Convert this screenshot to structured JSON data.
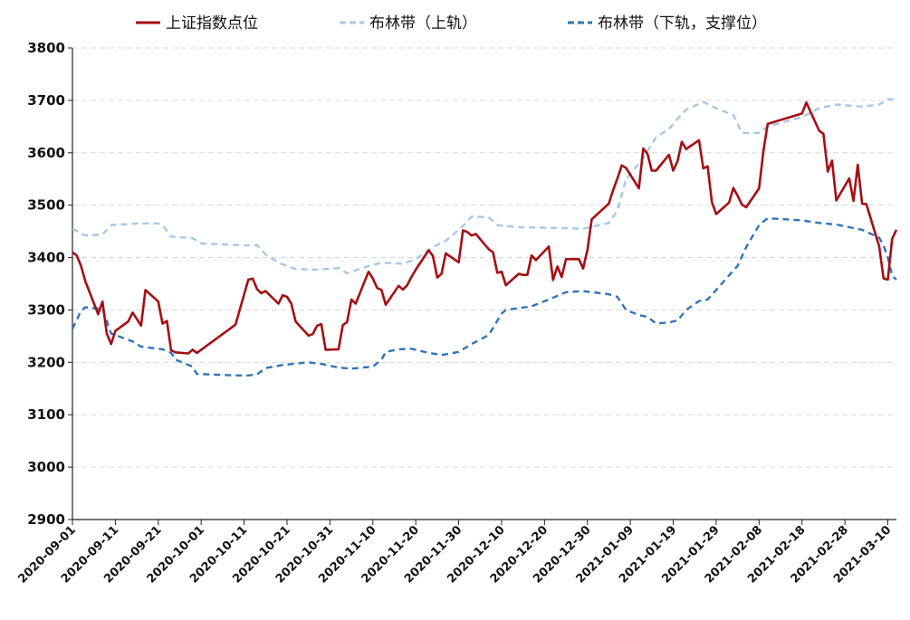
{
  "chart_data": {
    "type": "line",
    "title": "",
    "xlabel": "",
    "ylabel": "",
    "ylim": [
      2900,
      3800
    ],
    "yticks": [
      2900,
      3000,
      3100,
      3200,
      3300,
      3400,
      3500,
      3600,
      3700,
      3800
    ],
    "xlim": [
      "2020-09-01",
      "2021-03-12"
    ],
    "xticks": [
      "2020-09-01",
      "2020-09-11",
      "2020-09-21",
      "2020-10-01",
      "2020-10-11",
      "2020-10-21",
      "2020-10-31",
      "2020-11-10",
      "2020-11-20",
      "2020-11-30",
      "2020-12-10",
      "2020-12-20",
      "2020-12-30",
      "2021-01-09",
      "2021-01-19",
      "2021-01-29",
      "2021-02-08",
      "2021-02-18",
      "2021-02-28",
      "2021-03-10"
    ],
    "grid": "horizontal-dashed",
    "legend_position": "top",
    "series": [
      {
        "name": "上证指数点位",
        "color": "#a50f15",
        "style": "solid",
        "points": [
          [
            "2020-09-01",
            3410
          ],
          [
            "2020-09-02",
            3404
          ],
          [
            "2020-09-03",
            3384
          ],
          [
            "2020-09-04",
            3355
          ],
          [
            "2020-09-07",
            3292
          ],
          [
            "2020-09-08",
            3316
          ],
          [
            "2020-09-09",
            3255
          ],
          [
            "2020-09-10",
            3235
          ],
          [
            "2020-09-11",
            3260
          ],
          [
            "2020-09-14",
            3278
          ],
          [
            "2020-09-15",
            3295
          ],
          [
            "2020-09-16",
            3283
          ],
          [
            "2020-09-17",
            3270
          ],
          [
            "2020-09-18",
            3338
          ],
          [
            "2020-09-21",
            3316
          ],
          [
            "2020-09-22",
            3274
          ],
          [
            "2020-09-23",
            3279
          ],
          [
            "2020-09-24",
            3223
          ],
          [
            "2020-09-25",
            3219
          ],
          [
            "2020-09-28",
            3217
          ],
          [
            "2020-09-29",
            3224
          ],
          [
            "2020-09-30",
            3218
          ],
          [
            "2020-10-09",
            3272
          ],
          [
            "2020-10-12",
            3358
          ],
          [
            "2020-10-13",
            3360
          ],
          [
            "2020-10-14",
            3340
          ],
          [
            "2020-10-15",
            3332
          ],
          [
            "2020-10-16",
            3336
          ],
          [
            "2020-10-19",
            3312
          ],
          [
            "2020-10-20",
            3328
          ],
          [
            "2020-10-21",
            3325
          ],
          [
            "2020-10-22",
            3312
          ],
          [
            "2020-10-23",
            3278
          ],
          [
            "2020-10-26",
            3251
          ],
          [
            "2020-10-27",
            3254
          ],
          [
            "2020-10-28",
            3270
          ],
          [
            "2020-10-29",
            3273
          ],
          [
            "2020-10-30",
            3224
          ],
          [
            "2020-11-02",
            3225
          ],
          [
            "2020-11-03",
            3271
          ],
          [
            "2020-11-04",
            3277
          ],
          [
            "2020-11-05",
            3320
          ],
          [
            "2020-11-06",
            3312
          ],
          [
            "2020-11-09",
            3373
          ],
          [
            "2020-11-10",
            3360
          ],
          [
            "2020-11-11",
            3342
          ],
          [
            "2020-11-12",
            3338
          ],
          [
            "2020-11-13",
            3310
          ],
          [
            "2020-11-16",
            3346
          ],
          [
            "2020-11-17",
            3339
          ],
          [
            "2020-11-18",
            3347
          ],
          [
            "2020-11-19",
            3363
          ],
          [
            "2020-11-20",
            3377
          ],
          [
            "2020-11-23",
            3414
          ],
          [
            "2020-11-24",
            3403
          ],
          [
            "2020-11-25",
            3362
          ],
          [
            "2020-11-26",
            3369
          ],
          [
            "2020-11-27",
            3408
          ],
          [
            "2020-11-30",
            3391
          ],
          [
            "2020-12-01",
            3452
          ],
          [
            "2020-12-02",
            3449
          ],
          [
            "2020-12-03",
            3442
          ],
          [
            "2020-12-04",
            3445
          ],
          [
            "2020-12-07",
            3416
          ],
          [
            "2020-12-08",
            3410
          ],
          [
            "2020-12-09",
            3371
          ],
          [
            "2020-12-10",
            3373
          ],
          [
            "2020-12-11",
            3347
          ],
          [
            "2020-12-14",
            3369
          ],
          [
            "2020-12-15",
            3367
          ],
          [
            "2020-12-16",
            3367
          ],
          [
            "2020-12-17",
            3404
          ],
          [
            "2020-12-18",
            3395
          ],
          [
            "2020-12-21",
            3421
          ],
          [
            "2020-12-22",
            3357
          ],
          [
            "2020-12-23",
            3383
          ],
          [
            "2020-12-24",
            3363
          ],
          [
            "2020-12-25",
            3397
          ],
          [
            "2020-12-28",
            3397
          ],
          [
            "2020-12-29",
            3379
          ],
          [
            "2020-12-30",
            3415
          ],
          [
            "2020-12-31",
            3473
          ],
          [
            "2021-01-04",
            3503
          ],
          [
            "2021-01-05",
            3529
          ],
          [
            "2021-01-06",
            3551
          ],
          [
            "2021-01-07",
            3576
          ],
          [
            "2021-01-08",
            3571
          ],
          [
            "2021-01-11",
            3532
          ],
          [
            "2021-01-12",
            3608
          ],
          [
            "2021-01-13",
            3598
          ],
          [
            "2021-01-14",
            3566
          ],
          [
            "2021-01-15",
            3566
          ],
          [
            "2021-01-18",
            3596
          ],
          [
            "2021-01-19",
            3566
          ],
          [
            "2021-01-20",
            3584
          ],
          [
            "2021-01-21",
            3621
          ],
          [
            "2021-01-22",
            3607
          ],
          [
            "2021-01-25",
            3624
          ],
          [
            "2021-01-26",
            3570
          ],
          [
            "2021-01-27",
            3574
          ],
          [
            "2021-01-28",
            3506
          ],
          [
            "2021-01-29",
            3483
          ],
          [
            "2021-02-01",
            3505
          ],
          [
            "2021-02-02",
            3533
          ],
          [
            "2021-02-03",
            3518
          ],
          [
            "2021-02-04",
            3501
          ],
          [
            "2021-02-05",
            3496
          ],
          [
            "2021-02-08",
            3532
          ],
          [
            "2021-02-09",
            3603
          ],
          [
            "2021-02-10",
            3655
          ],
          [
            "2021-02-18",
            3675
          ],
          [
            "2021-02-19",
            3696
          ],
          [
            "2021-02-22",
            3642
          ],
          [
            "2021-02-23",
            3636
          ],
          [
            "2021-02-24",
            3564
          ],
          [
            "2021-02-25",
            3585
          ],
          [
            "2021-02-26",
            3509
          ],
          [
            "2021-03-01",
            3551
          ],
          [
            "2021-03-02",
            3508
          ],
          [
            "2021-03-03",
            3577
          ],
          [
            "2021-03-04",
            3503
          ],
          [
            "2021-03-05",
            3502
          ],
          [
            "2021-03-08",
            3421
          ],
          [
            "2021-03-09",
            3360
          ],
          [
            "2021-03-10",
            3358
          ],
          [
            "2021-03-11",
            3436
          ],
          [
            "2021-03-12",
            3453
          ]
        ]
      },
      {
        "name": "布林带（上轨）",
        "color": "#a6c8e8",
        "style": "dashed",
        "points": [
          [
            "2020-09-01",
            3455
          ],
          [
            "2020-09-04",
            3442
          ],
          [
            "2020-09-08",
            3444
          ],
          [
            "2020-09-10",
            3462
          ],
          [
            "2020-09-16",
            3465
          ],
          [
            "2020-09-21",
            3465
          ],
          [
            "2020-09-22",
            3462
          ],
          [
            "2020-09-24",
            3440
          ],
          [
            "2020-09-29",
            3437
          ],
          [
            "2020-10-01",
            3427
          ],
          [
            "2020-10-09",
            3424
          ],
          [
            "2020-10-11",
            3423
          ],
          [
            "2020-10-14",
            3424
          ],
          [
            "2020-10-16",
            3406
          ],
          [
            "2020-10-19",
            3390
          ],
          [
            "2020-10-23",
            3378
          ],
          [
            "2020-10-28",
            3377
          ],
          [
            "2020-11-02",
            3380
          ],
          [
            "2020-11-04",
            3370
          ],
          [
            "2020-11-09",
            3384
          ],
          [
            "2020-11-12",
            3390
          ],
          [
            "2020-11-17",
            3388
          ],
          [
            "2020-11-20",
            3397
          ],
          [
            "2020-11-24",
            3420
          ],
          [
            "2020-11-27",
            3432
          ],
          [
            "2020-12-01",
            3460
          ],
          [
            "2020-12-03",
            3478
          ],
          [
            "2020-12-07",
            3477
          ],
          [
            "2020-12-09",
            3462
          ],
          [
            "2020-12-14",
            3458
          ],
          [
            "2020-12-21",
            3457
          ],
          [
            "2020-12-25",
            3456
          ],
          [
            "2020-12-29",
            3455
          ],
          [
            "2021-01-04",
            3466
          ],
          [
            "2021-01-06",
            3490
          ],
          [
            "2021-01-08",
            3550
          ],
          [
            "2021-01-12",
            3590
          ],
          [
            "2021-01-15",
            3630
          ],
          [
            "2021-01-18",
            3645
          ],
          [
            "2021-01-20",
            3665
          ],
          [
            "2021-01-22",
            3682
          ],
          [
            "2021-01-26",
            3697
          ],
          [
            "2021-01-29",
            3685
          ],
          [
            "2021-02-02",
            3672
          ],
          [
            "2021-02-04",
            3638
          ],
          [
            "2021-02-08",
            3638
          ],
          [
            "2021-02-10",
            3650
          ],
          [
            "2021-02-18",
            3668
          ],
          [
            "2021-02-22",
            3685
          ],
          [
            "2021-02-26",
            3692
          ],
          [
            "2021-03-04",
            3688
          ],
          [
            "2021-03-08",
            3692
          ],
          [
            "2021-03-10",
            3702
          ],
          [
            "2021-03-12",
            3702
          ]
        ]
      },
      {
        "name": "布林带（下轨，支撑位）",
        "color": "#2e75b6",
        "style": "dashed",
        "points": [
          [
            "2020-09-01",
            3264
          ],
          [
            "2020-09-03",
            3298
          ],
          [
            "2020-09-04",
            3305
          ],
          [
            "2020-09-08",
            3302
          ],
          [
            "2020-09-10",
            3255
          ],
          [
            "2020-09-15",
            3240
          ],
          [
            "2020-09-17",
            3230
          ],
          [
            "2020-09-22",
            3225
          ],
          [
            "2020-09-24",
            3218
          ],
          [
            "2020-09-25",
            3205
          ],
          [
            "2020-09-29",
            3192
          ],
          [
            "2020-09-30",
            3178
          ],
          [
            "2020-10-09",
            3175
          ],
          [
            "2020-10-12",
            3175
          ],
          [
            "2020-10-14",
            3177
          ],
          [
            "2020-10-16",
            3189
          ],
          [
            "2020-10-20",
            3195
          ],
          [
            "2020-10-26",
            3200
          ],
          [
            "2020-10-29",
            3197
          ],
          [
            "2020-11-02",
            3190
          ],
          [
            "2020-11-05",
            3188
          ],
          [
            "2020-11-10",
            3192
          ],
          [
            "2020-11-12",
            3205
          ],
          [
            "2020-11-13",
            3220
          ],
          [
            "2020-11-16",
            3225
          ],
          [
            "2020-11-19",
            3226
          ],
          [
            "2020-11-23",
            3218
          ],
          [
            "2020-11-26",
            3214
          ],
          [
            "2020-11-30",
            3220
          ],
          [
            "2020-12-03",
            3235
          ],
          [
            "2020-12-07",
            3252
          ],
          [
            "2020-12-10",
            3293
          ],
          [
            "2020-12-11",
            3300
          ],
          [
            "2020-12-17",
            3307
          ],
          [
            "2020-12-21",
            3320
          ],
          [
            "2020-12-25",
            3334
          ],
          [
            "2020-12-29",
            3336
          ],
          [
            "2021-01-04",
            3330
          ],
          [
            "2021-01-06",
            3325
          ],
          [
            "2021-01-08",
            3300
          ],
          [
            "2021-01-11",
            3290
          ],
          [
            "2021-01-13",
            3287
          ],
          [
            "2021-01-15",
            3274
          ],
          [
            "2021-01-18",
            3276
          ],
          [
            "2021-01-20",
            3280
          ],
          [
            "2021-01-22",
            3300
          ],
          [
            "2021-01-25",
            3317
          ],
          [
            "2021-01-27",
            3320
          ],
          [
            "2021-01-29",
            3338
          ],
          [
            "2021-02-01",
            3366
          ],
          [
            "2021-02-03",
            3384
          ],
          [
            "2021-02-05",
            3420
          ],
          [
            "2021-02-08",
            3462
          ],
          [
            "2021-02-10",
            3475
          ],
          [
            "2021-02-18",
            3471
          ],
          [
            "2021-02-22",
            3466
          ],
          [
            "2021-02-26",
            3463
          ],
          [
            "2021-03-01",
            3458
          ],
          [
            "2021-03-04",
            3453
          ],
          [
            "2021-03-08",
            3438
          ],
          [
            "2021-03-09",
            3423
          ],
          [
            "2021-03-10",
            3400
          ],
          [
            "2021-03-11",
            3365
          ],
          [
            "2021-03-12",
            3358
          ]
        ]
      }
    ]
  }
}
